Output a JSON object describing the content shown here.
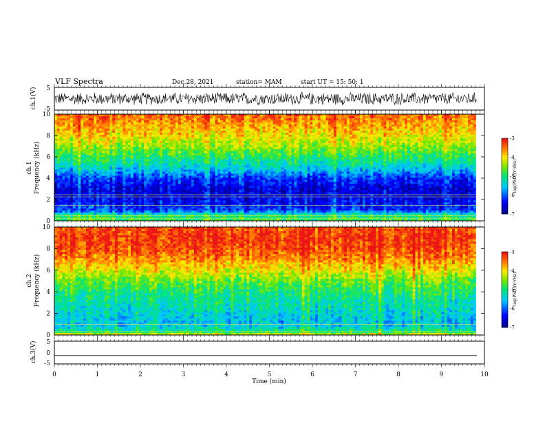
{
  "header": {
    "title": "VLF Spectra",
    "date": "Dec.28, 2021",
    "station": "station= MAM",
    "start": "start  UT =   15: 50: 1"
  },
  "chart_data": [
    {
      "type": "line",
      "panel": "ch1-waveform",
      "ylabel": "ch.1(V)",
      "ylim": [
        -5,
        5
      ],
      "yticks": [
        "5",
        "-5"
      ],
      "xlim": [
        0,
        10
      ],
      "description_values": "dense noise waveform, amplitude about ±3 V",
      "amplitude_v": 3
    },
    {
      "type": "heatmap",
      "panel": "ch1-spectrogram",
      "ylabel_line1": "ch.1",
      "ylabel_line2": "Frequency (kHz)",
      "ylim": [
        0,
        10
      ],
      "yticks": [
        "0",
        "2",
        "4",
        "6",
        "8",
        "10"
      ],
      "xlim": [
        0,
        9.8
      ],
      "colorbar": {
        "label": "log(PSD)(V²/Hz)",
        "ticks": [
          "-3",
          "-4",
          "-5",
          "-6",
          "-7"
        ],
        "range": [
          -7,
          -3
        ]
      },
      "profile_khz": [
        0,
        0.5,
        1,
        2,
        3,
        4,
        5,
        6,
        7,
        8,
        9,
        10
      ],
      "profile_logpsd": [
        -4.8,
        -5.0,
        -6.2,
        -6.5,
        -6.6,
        -6.2,
        -5.4,
        -4.9,
        -4.4,
        -4.0,
        -3.7,
        -3.4
      ],
      "lines_khz": [
        0.25,
        0.5,
        1.45,
        2.25,
        2.45
      ]
    },
    {
      "type": "heatmap",
      "panel": "ch2-spectrogram",
      "ylabel_line1": "ch.2",
      "ylabel_line2": "Frequency (kHz)",
      "ylim": [
        0,
        10
      ],
      "yticks": [
        "0",
        "2",
        "4",
        "6",
        "8",
        "10"
      ],
      "xlim": [
        0,
        9.8
      ],
      "colorbar": {
        "label": "log(PSD)(V²/Hz)",
        "ticks": [
          "-3",
          "-4",
          "-5",
          "-6",
          "-7"
        ],
        "range": [
          -7,
          -3
        ]
      },
      "profile_khz": [
        0,
        0.3,
        1,
        2,
        3,
        4,
        5,
        6,
        7,
        8,
        9,
        10
      ],
      "profile_logpsd": [
        -4.0,
        -5.0,
        -5.6,
        -5.4,
        -5.2,
        -5.0,
        -4.6,
        -4.1,
        -3.6,
        -3.3,
        -3.2,
        -3.3
      ],
      "lines_khz": [
        0.3,
        1.0
      ]
    },
    {
      "type": "line",
      "panel": "ch3-waveform",
      "ylabel": "ch.3(V)",
      "ylim": [
        -5,
        5
      ],
      "yticks": [
        "5",
        "0",
        "-5"
      ],
      "xlim": [
        0,
        10
      ],
      "xlabel": "Time (min)",
      "xticks": [
        "0",
        "1",
        "2",
        "3",
        "4",
        "5",
        "6",
        "7",
        "8",
        "9",
        "10"
      ],
      "constant_value_v": -1.3
    }
  ]
}
